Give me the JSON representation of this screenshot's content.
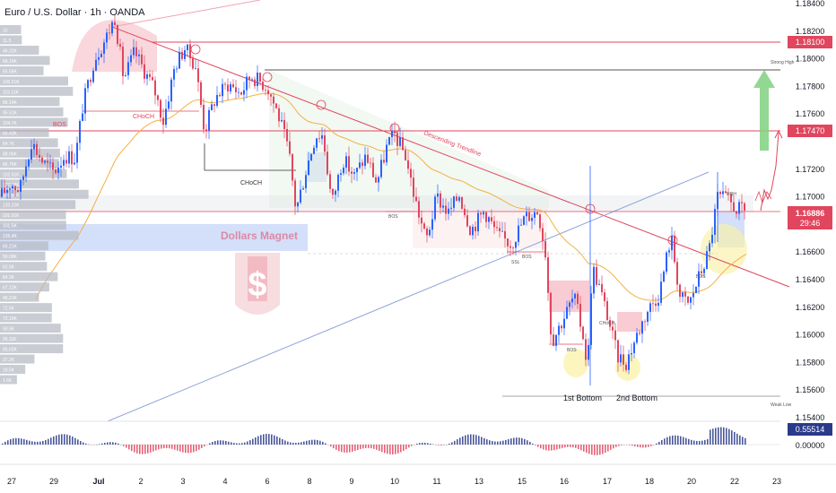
{
  "header": {
    "title": "Euro / U.S. Dollar · 1h · OANDA"
  },
  "chart_data": {
    "type": "candlestick",
    "title": "Euro / U.S. Dollar · 1h · OANDA",
    "ylim": [
      1.154,
      1.184
    ],
    "y_ticks": [
      "1.18400",
      "1.18200",
      "1.18000",
      "1.17800",
      "1.17600",
      "1.17400",
      "1.17200",
      "1.17000",
      "1.16800",
      "1.16600",
      "1.16400",
      "1.16200",
      "1.16000",
      "1.15800",
      "1.15600",
      "1.15400"
    ],
    "x_ticks": [
      "27",
      "29",
      "Jul",
      "2",
      "3",
      "4",
      "6",
      "8",
      "9",
      "10",
      "11",
      "13",
      "15",
      "16",
      "17",
      "18",
      "20",
      "22",
      "23"
    ],
    "price_labels": {
      "level_1": "1.18100",
      "level_2": "1.17470",
      "current": "1.16886",
      "countdown": "29:46",
      "oscillator": "0.55514",
      "oscillator_zero": "0.00000"
    },
    "levels": [
      {
        "name": "resistance-high",
        "value": 1.181,
        "color": "#e0465e"
      },
      {
        "name": "strong-high",
        "value": 1.179,
        "color": "#555555"
      },
      {
        "name": "resistance-mid",
        "value": 1.1747,
        "color": "#e0465e"
      },
      {
        "name": "weak-low",
        "value": 1.1558,
        "color": "#888888"
      }
    ],
    "annotations": {
      "choch_1": "CHoCH",
      "choch_2": "CHoCH",
      "choch_3": "CHoCH",
      "bos_1": "BOS",
      "bos_2": "BOS",
      "bos_3": "BOS",
      "bos_4": "BOS",
      "bos_5": "BOS",
      "descending_trendline": "Descending Trendline",
      "dollars_magnet": "Dollars Magnet",
      "strong_high": "Strong High",
      "weak_low": "Weak Low",
      "bottom_1": "1st Bottom",
      "bottom_2": "2nd Bottom",
      "eqh": "EQH",
      "ssl": "SSL"
    },
    "colors": {
      "up": "#2962ff",
      "down": "#e0465e",
      "ema": "#f5b041",
      "trend": "#e0465e",
      "support": "#8fa4d8"
    },
    "volume_profile": [
      "10",
      "11.5",
      "46.22K",
      "68.19K",
      "55.58K",
      "105.51K",
      "115.11K",
      "88.14K",
      "95.51K",
      "104.7K",
      "66.43K",
      "84.7K",
      "88.96K",
      "86.75K",
      "102.61K",
      "127.18K",
      "146.61K",
      "120.22K",
      "101.01K",
      "101.5K",
      "126.4K",
      "65.21K",
      "59.08K",
      "62.5K",
      "84.2K",
      "67.12K",
      "46.21K",
      "72.5K",
      "72.15K",
      "90.5K",
      "95.11K",
      "95.02K",
      "37.2K",
      "18.5K",
      "1.6K"
    ],
    "oscillator_last": 0.55514
  }
}
